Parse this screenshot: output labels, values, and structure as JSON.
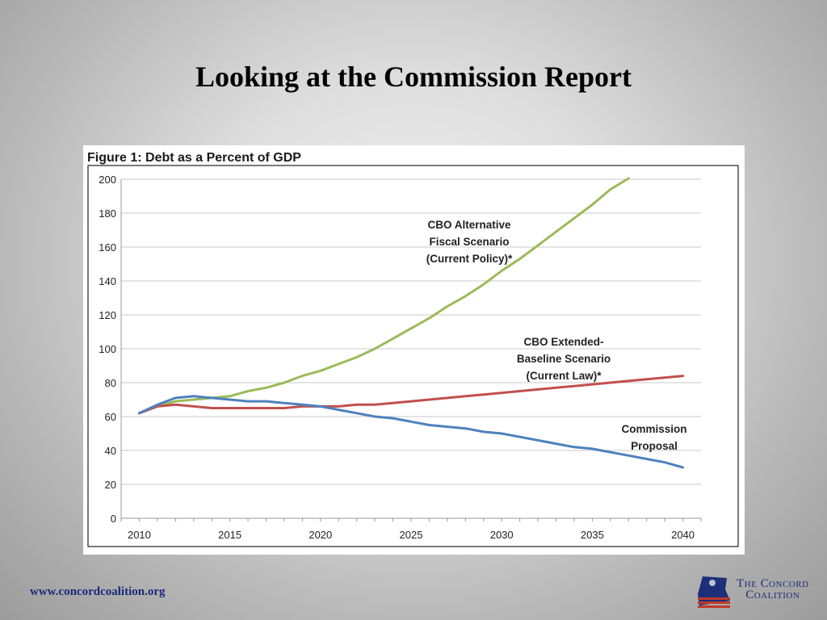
{
  "slide": {
    "title": "Looking at the Commission Report",
    "footer_url": "www.concordcoalition.org",
    "logo_line1": "The Concord",
    "logo_line2": "Coalition"
  },
  "chart_data": {
    "type": "line",
    "title": "Figure 1: Debt as a Percent of GDP",
    "xlabel": "",
    "ylabel": "",
    "xlim": [
      2009,
      2041
    ],
    "ylim": [
      0,
      200
    ],
    "x_ticks": [
      2010,
      2015,
      2020,
      2025,
      2030,
      2035,
      2040
    ],
    "y_ticks": [
      0,
      20,
      40,
      60,
      80,
      100,
      120,
      140,
      160,
      180,
      200
    ],
    "grid": "horizontal",
    "series": [
      {
        "name": "CBO Alternative Fiscal Scenario (Current Policy)*",
        "label_lines": [
          "CBO Alternative",
          "Fiscal Scenario",
          "(Current Policy)*"
        ],
        "color": "#9bbb59",
        "x": [
          2010,
          2011,
          2012,
          2013,
          2014,
          2015,
          2016,
          2017,
          2018,
          2019,
          2020,
          2021,
          2022,
          2023,
          2024,
          2025,
          2026,
          2027,
          2028,
          2029,
          2030,
          2031,
          2032,
          2033,
          2034,
          2035,
          2036,
          2037
        ],
        "values": [
          62,
          66,
          69,
          70,
          71,
          72,
          75,
          77,
          80,
          84,
          87,
          91,
          95,
          100,
          106,
          112,
          118,
          125,
          131,
          138,
          146,
          153,
          161,
          169,
          177,
          185,
          194,
          203
        ]
      },
      {
        "name": "CBO Extended-Baseline Scenario (Current Law)*",
        "label_lines": [
          "CBO Extended-",
          "Baseline Scenario",
          "(Current Law)*"
        ],
        "color": "#c0504d",
        "x": [
          2010,
          2011,
          2012,
          2013,
          2014,
          2015,
          2016,
          2017,
          2018,
          2019,
          2020,
          2021,
          2022,
          2023,
          2024,
          2025,
          2026,
          2027,
          2028,
          2029,
          2030,
          2031,
          2032,
          2033,
          2034,
          2035,
          2036,
          2037,
          2038,
          2039,
          2040
        ],
        "values": [
          62,
          66,
          67,
          66,
          65,
          65,
          65,
          65,
          65,
          66,
          66,
          66,
          67,
          67,
          68,
          69,
          70,
          71,
          72,
          73,
          74,
          75,
          76,
          77,
          78,
          79,
          80,
          81,
          82,
          83,
          84
        ]
      },
      {
        "name": "Commission Proposal",
        "label_lines": [
          "Commission",
          "Proposal"
        ],
        "color": "#4f81bd",
        "x": [
          2010,
          2011,
          2012,
          2013,
          2014,
          2015,
          2016,
          2017,
          2018,
          2019,
          2020,
          2021,
          2022,
          2023,
          2024,
          2025,
          2026,
          2027,
          2028,
          2029,
          2030,
          2031,
          2032,
          2033,
          2034,
          2035,
          2036,
          2037,
          2038,
          2039,
          2040
        ],
        "values": [
          62,
          67,
          71,
          72,
          71,
          70,
          69,
          69,
          68,
          67,
          66,
          64,
          62,
          60,
          59,
          57,
          55,
          54,
          53,
          51,
          50,
          48,
          46,
          44,
          42,
          41,
          39,
          37,
          35,
          33,
          30
        ]
      }
    ]
  }
}
